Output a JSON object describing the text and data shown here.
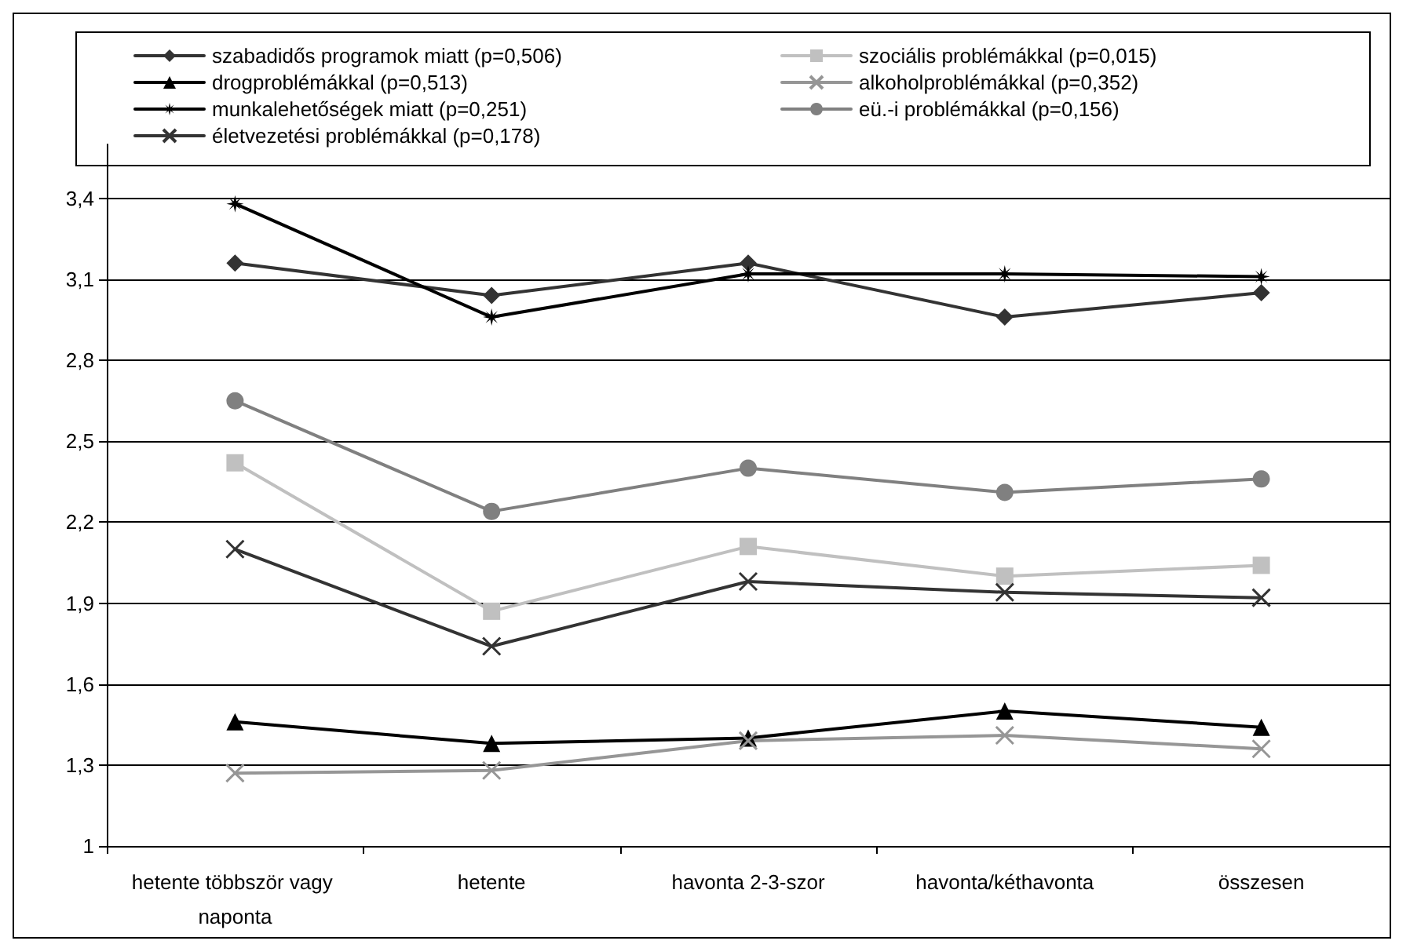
{
  "chart_data": {
    "type": "line",
    "categories": [
      "hetente többször vagy naponta",
      "hetente",
      "havonta 2-3-szor",
      "havonta/kéthavonta",
      "összesen"
    ],
    "series": [
      {
        "name": "szabadidős programok miatt (p=0,506)",
        "color": "#333333",
        "marker": "diamond",
        "values": [
          3.16,
          3.04,
          3.16,
          2.96,
          3.05
        ]
      },
      {
        "name": "szociális problémákkal (p=0,015)",
        "color": "#c0c0c0",
        "marker": "square",
        "values": [
          2.42,
          1.87,
          2.11,
          2.0,
          2.04
        ]
      },
      {
        "name": "drogproblémákkal (p=0,513)",
        "color": "#000000",
        "marker": "triangle",
        "values": [
          1.46,
          1.38,
          1.4,
          1.5,
          1.44
        ]
      },
      {
        "name": "alkoholproblémákkal (p=0,352)",
        "color": "#969696",
        "marker": "cross",
        "values": [
          1.27,
          1.28,
          1.39,
          1.41,
          1.36
        ]
      },
      {
        "name": "munkalehetőségek miatt (p=0,251)",
        "color": "#000000",
        "marker": "star",
        "values": [
          3.38,
          2.96,
          3.12,
          3.12,
          3.11
        ]
      },
      {
        "name": "eü.-i problémákkal (p=0,156)",
        "color": "#808080",
        "marker": "circle",
        "values": [
          2.65,
          2.24,
          2.4,
          2.31,
          2.36
        ]
      },
      {
        "name": "életvezetési problémákkal (p=0,178)",
        "color": "#333333",
        "marker": "cross",
        "values": [
          2.1,
          1.74,
          1.98,
          1.94,
          1.92
        ]
      }
    ],
    "ylim": [
      1,
      3.6
    ],
    "yticks": [
      1,
      {
        "value": 1.3,
        "label": "1,3"
      },
      {
        "value": 1.6,
        "label": "1,6"
      },
      {
        "value": 1.9,
        "label": "1,9"
      },
      {
        "value": 2.2,
        "label": "2,2"
      },
      {
        "value": 2.5,
        "label": "2,5"
      },
      {
        "value": 2.8,
        "label": "2,8"
      },
      {
        "value": 3.1,
        "label": "3,1"
      },
      {
        "value": 3.4,
        "label": "3,4"
      }
    ],
    "grid": "y",
    "legend": "top",
    "line_style": "solid"
  }
}
